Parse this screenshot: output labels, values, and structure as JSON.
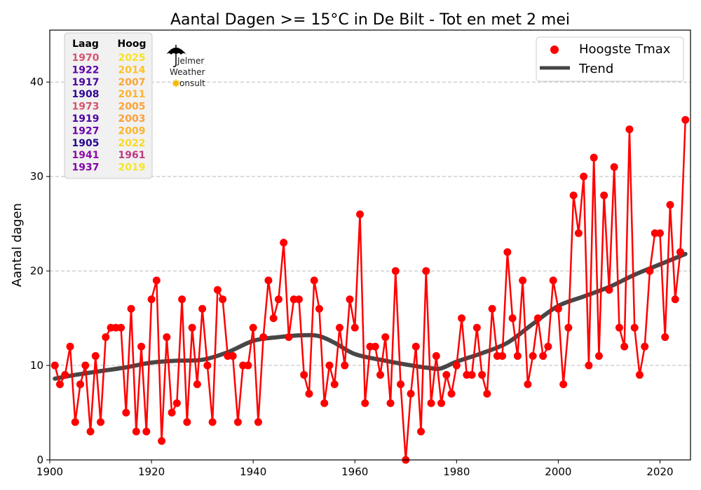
{
  "chart_data": {
    "type": "line",
    "title": "Aantal Dagen >= 15°C in De Bilt - Tot en met 2 mei",
    "xlabel": "",
    "ylabel": "Aantal dagen",
    "xlim": [
      1900,
      2026
    ],
    "ylim": [
      0,
      45.5
    ],
    "xticks": [
      1900,
      1920,
      1940,
      1960,
      1980,
      2000,
      2020
    ],
    "yticks": [
      0,
      10,
      20,
      30,
      40
    ],
    "grid": "horizontal dashed",
    "legend_position": "top-right",
    "series": [
      {
        "name": "Hoogste Tmax",
        "style": "line+markers",
        "color": "#ff0000",
        "x": [
          1901,
          1902,
          1903,
          1904,
          1905,
          1906,
          1907,
          1908,
          1909,
          1910,
          1911,
          1912,
          1913,
          1914,
          1915,
          1916,
          1917,
          1918,
          1919,
          1920,
          1921,
          1922,
          1923,
          1924,
          1925,
          1926,
          1927,
          1928,
          1929,
          1930,
          1931,
          1932,
          1933,
          1934,
          1935,
          1936,
          1937,
          1938,
          1939,
          1940,
          1941,
          1942,
          1943,
          1944,
          1945,
          1946,
          1947,
          1948,
          1949,
          1950,
          1951,
          1952,
          1953,
          1954,
          1955,
          1956,
          1957,
          1958,
          1959,
          1960,
          1961,
          1962,
          1963,
          1964,
          1965,
          1966,
          1967,
          1968,
          1969,
          1970,
          1971,
          1972,
          1973,
          1974,
          1975,
          1976,
          1977,
          1978,
          1979,
          1980,
          1981,
          1982,
          1983,
          1984,
          1985,
          1986,
          1987,
          1988,
          1989,
          1990,
          1991,
          1992,
          1993,
          1994,
          1995,
          1996,
          1997,
          1998,
          1999,
          2000,
          2001,
          2002,
          2003,
          2004,
          2005,
          2006,
          2007,
          2008,
          2009,
          2010,
          2011,
          2012,
          2013,
          2014,
          2015,
          2016,
          2017,
          2018,
          2019,
          2020,
          2021,
          2022,
          2023,
          2024,
          2025
        ],
        "values": [
          10,
          8,
          9,
          12,
          4,
          8,
          10,
          3,
          11,
          4,
          13,
          14,
          14,
          14,
          5,
          16,
          3,
          12,
          3,
          17,
          19,
          2,
          13,
          5,
          6,
          17,
          4,
          14,
          8,
          16,
          10,
          4,
          18,
          17,
          11,
          11,
          4,
          10,
          10,
          14,
          4,
          13,
          19,
          15,
          17,
          23,
          13,
          17,
          17,
          9,
          7,
          19,
          16,
          6,
          10,
          8,
          14,
          10,
          17,
          14,
          26,
          6,
          12,
          12,
          9,
          13,
          6,
          20,
          8,
          0,
          7,
          12,
          3,
          20,
          6,
          11,
          6,
          9,
          7,
          10,
          15,
          9,
          9,
          14,
          9,
          7,
          16,
          11,
          11,
          22,
          15,
          11,
          19,
          8,
          11,
          15,
          11,
          12,
          19,
          16,
          8,
          14,
          28,
          24,
          30,
          10,
          32,
          11,
          28,
          18,
          31,
          14,
          12,
          35,
          14,
          9,
          12,
          20,
          24,
          24,
          13,
          27,
          17,
          22,
          36
        ]
      },
      {
        "name": "Trend",
        "style": "smooth-line",
        "color": "#333333",
        "x": [
          1901,
          1905,
          1910,
          1915,
          1920,
          1925,
          1930,
          1935,
          1940,
          1945,
          1950,
          1953,
          1956,
          1960,
          1965,
          1970,
          1975,
          1977,
          1980,
          1985,
          1990,
          1995,
          2000,
          2005,
          2010,
          2015,
          2020,
          2025
        ],
        "values": [
          8.6,
          9.0,
          9.4,
          9.8,
          10.3,
          10.5,
          10.6,
          11.4,
          12.6,
          13.0,
          13.2,
          13.1,
          12.4,
          11.2,
          10.6,
          10.1,
          9.7,
          9.7,
          10.4,
          11.3,
          12.4,
          14.4,
          16.3,
          17.3,
          18.3,
          19.6,
          20.7,
          21.8
        ]
      }
    ],
    "legend": [
      {
        "label": "Hoogste Tmax",
        "kind": "marker",
        "color": "#ff0000"
      },
      {
        "label": "Trend",
        "kind": "line",
        "color": "#333333"
      }
    ],
    "ranking_table": {
      "headers": [
        "Laag",
        "Hoog"
      ],
      "rows": [
        {
          "low": "1970",
          "low_color": "#d6546e",
          "high": "2025",
          "high_color": "#f7e225"
        },
        {
          "low": "1922",
          "low_color": "#5c01a6",
          "high": "2014",
          "high_color": "#fdc328"
        },
        {
          "low": "1917",
          "low_color": "#4903a0",
          "high": "2007",
          "high_color": "#fca636"
        },
        {
          "low": "1908",
          "low_color": "#2f0596",
          "high": "2011",
          "high_color": "#fdb32f"
        },
        {
          "low": "1973",
          "low_color": "#d6546e",
          "high": "2005",
          "high_color": "#fca338"
        },
        {
          "low": "1919",
          "low_color": "#4c02a1",
          "high": "2003",
          "high_color": "#fb9f3a"
        },
        {
          "low": "1927",
          "low_color": "#6a00a8",
          "high": "2009",
          "high_color": "#fdb42f"
        },
        {
          "low": "1905",
          "low_color": "#24068f",
          "high": "2022",
          "high_color": "#f9d924"
        },
        {
          "low": "1941",
          "low_color": "#8f0da4",
          "high": "1961",
          "high_color": "#c03a83"
        },
        {
          "low": "1937",
          "low_color": "#8405a7",
          "high": "2019",
          "high_color": "#f5e626"
        }
      ]
    },
    "logo": {
      "lines": [
        "Jelmer",
        "Weather",
        "Consult"
      ],
      "icons": [
        "umbrella-icon",
        "sun-icon"
      ]
    }
  }
}
